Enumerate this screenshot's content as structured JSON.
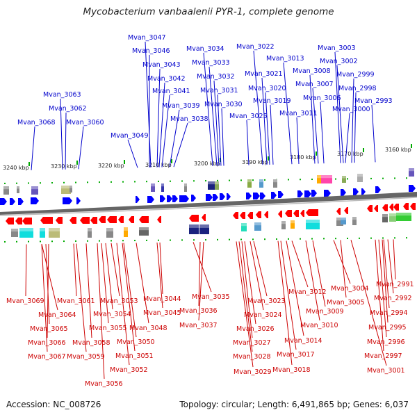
{
  "title": "Mycobacterium vanbaalenii PYR-1, complete genome",
  "accession": "Accession: NC_008726",
  "summary": "Topology: circular; Length: 6,491,865 bp; Genes: 6,037",
  "colors": {
    "top_label": "#0000cc",
    "bottom_label": "#cc0000",
    "top_arrow": "#0000ff",
    "bottom_arrow": "#ff0000",
    "tick": "#00aa00",
    "backbone": "#666666"
  },
  "scale_labels": [
    "3240 kbp",
    "3230 kbp",
    "3220 kbp",
    "3210 kbp",
    "3200 kbp",
    "3190 kbp",
    "3180 kbp",
    "3170 kbp",
    "3160 kbp"
  ],
  "top_genes": [
    "Mvan_3047",
    "Mvan_3046",
    "Mvan_3043",
    "Mvan_3042",
    "Mvan_3041",
    "Mvan_3039",
    "Mvan_3038",
    "Mvan_3034",
    "Mvan_3033",
    "Mvan_3032",
    "Mvan_3031",
    "Mvan_3030",
    "Mvan_3022",
    "Mvan_3021",
    "Mvan_3020",
    "Mvan_3019",
    "Mvan_3025",
    "Mvan_3013",
    "Mvan_3011",
    "Mvan_3008",
    "Mvan_3007",
    "Mvan_3006",
    "Mvan_3003",
    "Mvan_3002",
    "Mvan_2999",
    "Mvan_2998",
    "Mvan_3000",
    "Mvan_2993",
    "Mvan_3063",
    "Mvan_3062",
    "Mvan_3068",
    "Mvan_3060",
    "Mvan_3049"
  ],
  "bottom_genes": [
    "Mvan_3069",
    "Mvan_3064",
    "Mvan_3065",
    "Mvan_3066",
    "Mvan_3067",
    "Mvan_3061",
    "Mvan_3058",
    "Mvan_3059",
    "Mvan_3056",
    "Mvan_3053",
    "Mvan_3054",
    "Mvan_3055",
    "Mvan_3052",
    "Mvan_3051",
    "Mvan_3050",
    "Mvan_3048",
    "Mvan_3044",
    "Mvan_3045",
    "Mvan_3035",
    "Mvan_3036",
    "Mvan_3037",
    "Mvan_3023",
    "Mvan_3024",
    "Mvan_3026",
    "Mvan_3027",
    "Mvan_3028",
    "Mvan_3029",
    "Mvan_3012",
    "Mvan_3009",
    "Mvan_3010",
    "Mvan_3014",
    "Mvan_3017",
    "Mvan_3018",
    "Mvan_3004",
    "Mvan_3005",
    "Mvan_3001",
    "Mvan_2991",
    "Mvan_2992",
    "Mvan_2994",
    "Mvan_2995",
    "Mvan_2996",
    "Mvan_2997"
  ]
}
